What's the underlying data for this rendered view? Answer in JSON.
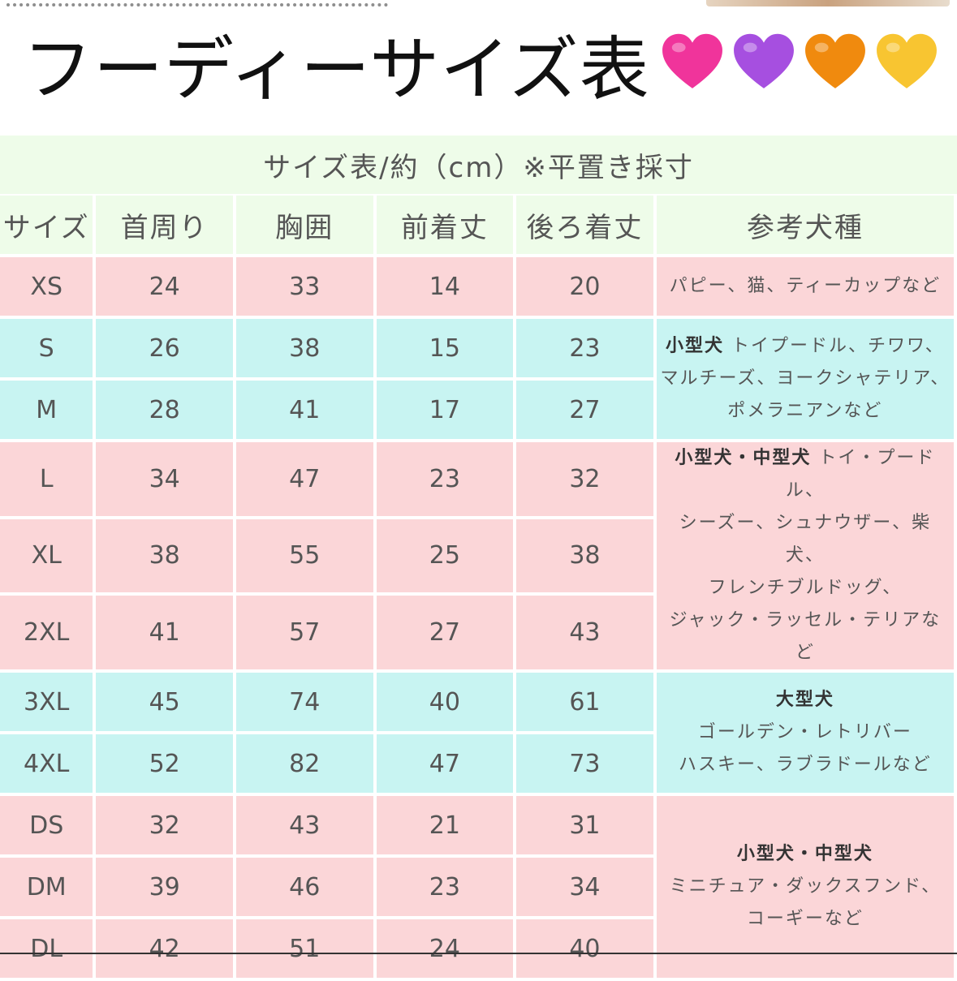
{
  "title": "フーディーサイズ表",
  "title_hearts": [
    {
      "icon": "pink-heart-icon",
      "color": "#f0349b"
    },
    {
      "icon": "purple-heart-icon",
      "color": "#a64fe0"
    },
    {
      "icon": "orange-heart-icon",
      "color": "#f08a0e"
    },
    {
      "icon": "yellow-heart-icon",
      "color": "#f8c531"
    }
  ],
  "colors": {
    "header_bg": "#eefce9",
    "pink_row": "#fbd6d8",
    "aqua_row": "#c8f4f2",
    "text": "#555555"
  },
  "table": {
    "caption": "サイズ表/約（cm）※平置き採寸",
    "headers": [
      "サイズ",
      "首周り",
      "胸囲",
      "前着丈",
      "後ろ着丈",
      "参考犬種"
    ],
    "rows": [
      {
        "size": "XS",
        "neck": "24",
        "chest": "33",
        "front": "14",
        "back": "20"
      },
      {
        "size": "S",
        "neck": "26",
        "chest": "38",
        "front": "15",
        "back": "23"
      },
      {
        "size": "M",
        "neck": "28",
        "chest": "41",
        "front": "17",
        "back": "27"
      },
      {
        "size": "L",
        "neck": "34",
        "chest": "47",
        "front": "23",
        "back": "32"
      },
      {
        "size": "XL",
        "neck": "38",
        "chest": "55",
        "front": "25",
        "back": "38"
      },
      {
        "size": "2XL",
        "neck": "41",
        "chest": "57",
        "front": "27",
        "back": "43"
      },
      {
        "size": "3XL",
        "neck": "45",
        "chest": "74",
        "front": "40",
        "back": "61"
      },
      {
        "size": "4XL",
        "neck": "52",
        "chest": "82",
        "front": "47",
        "back": "73"
      },
      {
        "size": "DS",
        "neck": "32",
        "chest": "43",
        "front": "21",
        "back": "31"
      },
      {
        "size": "DM",
        "neck": "39",
        "chest": "46",
        "front": "23",
        "back": "34"
      },
      {
        "size": "DL",
        "neck": "42",
        "chest": "51",
        "front": "24",
        "back": "40"
      }
    ],
    "breeds": [
      {
        "bold": "",
        "text": "パピー、猫、ティーカップなど"
      },
      {
        "bold": "小型犬",
        "lines": [
          " トイプードル、チワワ、",
          "マルチーズ、ヨークシャテリア、",
          "ポメラニアンなど"
        ]
      },
      {
        "bold": "小型犬・中型犬",
        "lines": [
          " トイ・プードル、",
          "シーズー、シュナウザー、柴犬、",
          "フレンチブルドッグ、",
          "ジャック・ラッセル・テリアなど"
        ]
      },
      {
        "bold": "大型犬",
        "lines": [
          "ゴールデン・レトリバー",
          "ハスキー、ラブラドールなど"
        ]
      },
      {
        "bold": "小型犬・中型犬",
        "lines": [
          "ミニチュア・ダックスフンド、",
          "コーギーなど"
        ]
      }
    ]
  }
}
